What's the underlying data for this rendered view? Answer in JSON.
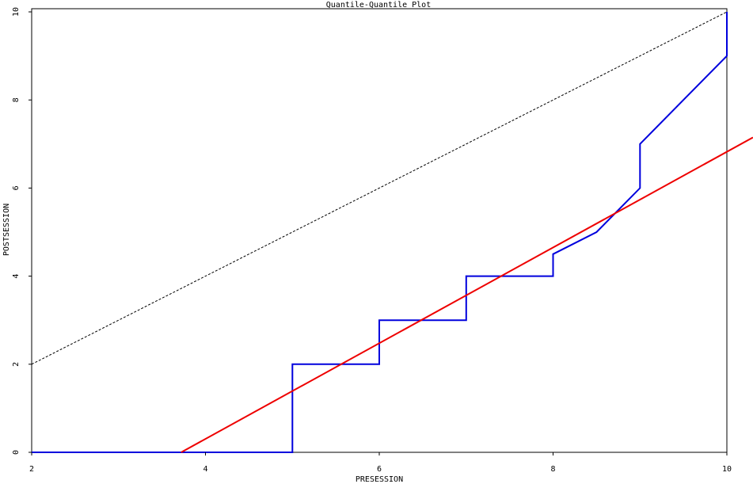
{
  "chart_data": {
    "type": "line",
    "title": "Quantile-Quantile Plot",
    "xlabel": "PRESESSION",
    "ylabel": "POSTSESSION",
    "xlim": [
      2,
      10
    ],
    "ylim": [
      0,
      10
    ],
    "xticks": [
      "2",
      "4",
      "6",
      "8",
      "10"
    ],
    "yticks": [
      "0",
      "2",
      "4",
      "6",
      "8",
      "10"
    ],
    "grid": false,
    "series": [
      {
        "kind": "quantile-step",
        "color": "#0000dd",
        "x": [
          2,
          5,
          5,
          6,
          6,
          7,
          7,
          8,
          8,
          8.5,
          9,
          9,
          9.5,
          10,
          10
        ],
        "y": [
          0,
          0,
          2,
          2,
          3,
          3,
          4,
          4,
          4.5,
          5,
          6,
          7,
          8,
          9,
          10
        ]
      },
      {
        "kind": "fit-line",
        "color": "#ee0000",
        "x": [
          3.72,
          10.3
        ],
        "y": [
          0,
          7.15
        ]
      },
      {
        "kind": "reference-diagonal",
        "color": "#000000",
        "dashed": true,
        "x": [
          2,
          10
        ],
        "y": [
          2,
          10
        ]
      }
    ]
  }
}
